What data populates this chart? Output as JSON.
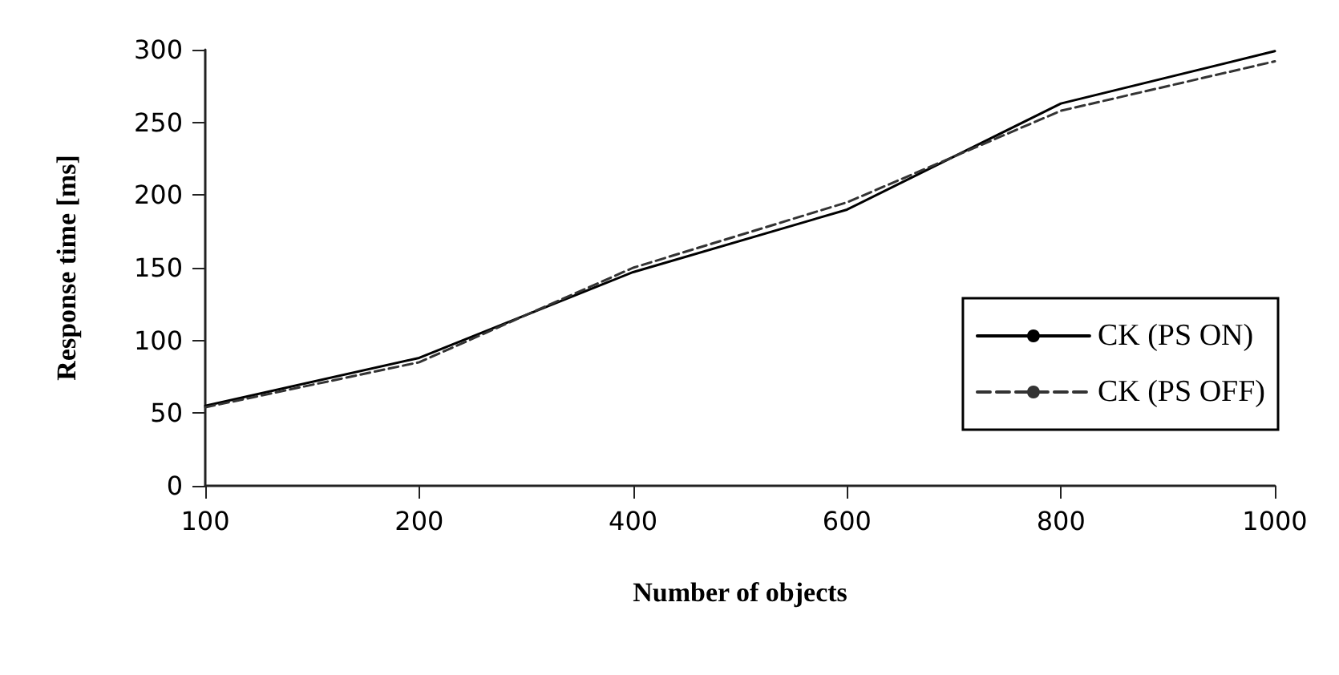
{
  "chart_data": {
    "type": "line",
    "xlabel": "Number of objects",
    "ylabel": "Response time [ms]",
    "categories": [
      "100",
      "200",
      "400",
      "600",
      "800",
      "1000"
    ],
    "series": [
      {
        "name": "CK (PS ON)",
        "color": "#000000",
        "line_style": "solid",
        "values": [
          55,
          88,
          147,
          190,
          263,
          299
        ]
      },
      {
        "name": "CK (PS OFF)",
        "color": "#333333",
        "line_style": "dashed",
        "values": [
          54,
          85,
          150,
          195,
          258,
          292
        ]
      }
    ],
    "ylim": [
      0,
      300
    ],
    "yticks": [
      0,
      50,
      100,
      150,
      200,
      250,
      300
    ],
    "grid": false,
    "legend": "right",
    "marker": "none"
  }
}
